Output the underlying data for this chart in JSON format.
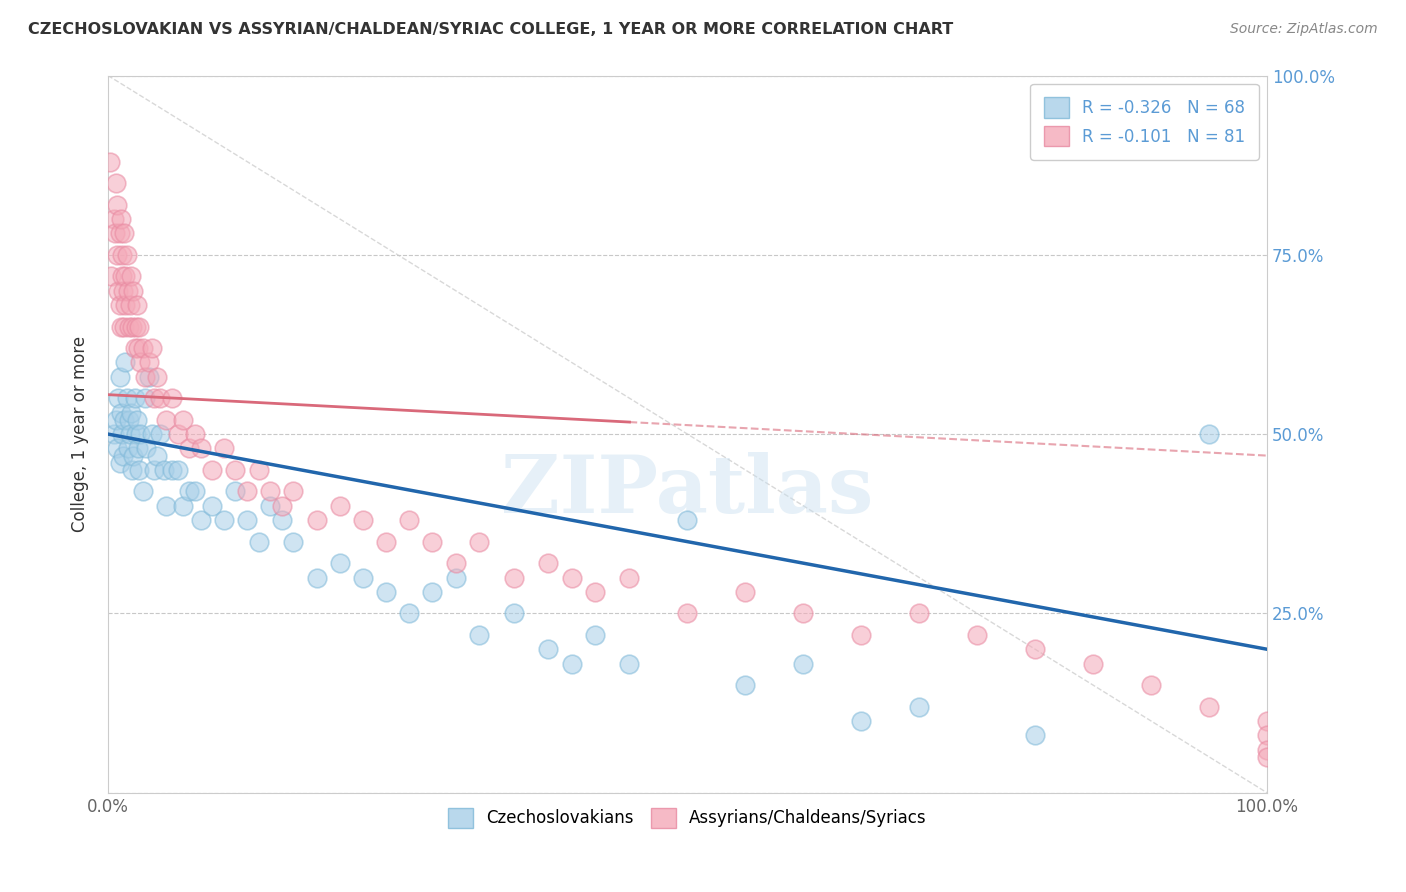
{
  "title": "CZECHOSLOVAKIAN VS ASSYRIAN/CHALDEAN/SYRIAC COLLEGE, 1 YEAR OR MORE CORRELATION CHART",
  "source": "Source: ZipAtlas.com",
  "ylabel": "College, 1 year or more",
  "xlim": [
    0.0,
    1.0
  ],
  "ylim": [
    0.0,
    1.0
  ],
  "xticks": [
    0.0,
    0.25,
    0.5,
    0.75,
    1.0
  ],
  "xtick_labels": [
    "0.0%",
    "",
    "",
    "",
    "100.0%"
  ],
  "yticks": [
    0.0,
    0.25,
    0.5,
    0.75,
    1.0
  ],
  "ytick_labels_right": [
    "",
    "25.0%",
    "50.0%",
    "75.0%",
    "100.0%"
  ],
  "blue_R": -0.326,
  "blue_N": 68,
  "pink_R": -0.101,
  "pink_N": 81,
  "blue_color": "#a8cfe8",
  "pink_color": "#f4a9b8",
  "blue_edge_color": "#7eb8d8",
  "pink_edge_color": "#e888a0",
  "blue_line_color": "#2166ac",
  "pink_line_color": "#d9697a",
  "legend_label_blue": "Czechoslovakians",
  "legend_label_pink": "Assyrians/Chaldeans/Syriacs",
  "watermark": "ZIPatlas",
  "background_color": "#ffffff",
  "grid_color": "#c8c8c8",
  "axis_label_color": "#5b9bd5",
  "blue_trend_y_start": 0.5,
  "blue_trend_y_end": 0.2,
  "pink_trend_y_start": 0.555,
  "pink_trend_y_end": 0.47,
  "blue_scatter_x": [
    0.005,
    0.007,
    0.008,
    0.009,
    0.01,
    0.01,
    0.011,
    0.012,
    0.013,
    0.014,
    0.015,
    0.016,
    0.017,
    0.018,
    0.019,
    0.02,
    0.021,
    0.022,
    0.023,
    0.024,
    0.025,
    0.026,
    0.027,
    0.028,
    0.03,
    0.032,
    0.033,
    0.035,
    0.038,
    0.04,
    0.042,
    0.045,
    0.048,
    0.05,
    0.055,
    0.06,
    0.065,
    0.07,
    0.075,
    0.08,
    0.09,
    0.1,
    0.11,
    0.12,
    0.13,
    0.14,
    0.15,
    0.16,
    0.18,
    0.2,
    0.22,
    0.24,
    0.26,
    0.28,
    0.3,
    0.32,
    0.35,
    0.38,
    0.4,
    0.42,
    0.45,
    0.5,
    0.55,
    0.6,
    0.65,
    0.7,
    0.8,
    0.95
  ],
  "blue_scatter_y": [
    0.5,
    0.52,
    0.48,
    0.55,
    0.58,
    0.46,
    0.53,
    0.5,
    0.47,
    0.52,
    0.6,
    0.55,
    0.48,
    0.52,
    0.5,
    0.53,
    0.45,
    0.47,
    0.55,
    0.5,
    0.52,
    0.48,
    0.45,
    0.5,
    0.42,
    0.55,
    0.48,
    0.58,
    0.5,
    0.45,
    0.47,
    0.5,
    0.45,
    0.4,
    0.45,
    0.45,
    0.4,
    0.42,
    0.42,
    0.38,
    0.4,
    0.38,
    0.42,
    0.38,
    0.35,
    0.4,
    0.38,
    0.35,
    0.3,
    0.32,
    0.3,
    0.28,
    0.25,
    0.28,
    0.3,
    0.22,
    0.25,
    0.2,
    0.18,
    0.22,
    0.18,
    0.38,
    0.15,
    0.18,
    0.1,
    0.12,
    0.08,
    0.5
  ],
  "pink_scatter_x": [
    0.003,
    0.005,
    0.006,
    0.007,
    0.008,
    0.008,
    0.009,
    0.01,
    0.01,
    0.011,
    0.011,
    0.012,
    0.012,
    0.013,
    0.014,
    0.014,
    0.015,
    0.015,
    0.016,
    0.017,
    0.018,
    0.019,
    0.02,
    0.021,
    0.022,
    0.023,
    0.024,
    0.025,
    0.026,
    0.027,
    0.028,
    0.03,
    0.032,
    0.035,
    0.038,
    0.04,
    0.042,
    0.045,
    0.05,
    0.055,
    0.06,
    0.065,
    0.07,
    0.075,
    0.08,
    0.09,
    0.1,
    0.11,
    0.12,
    0.13,
    0.14,
    0.15,
    0.16,
    0.18,
    0.2,
    0.22,
    0.24,
    0.26,
    0.28,
    0.3,
    0.32,
    0.35,
    0.38,
    0.4,
    0.42,
    0.45,
    0.5,
    0.55,
    0.6,
    0.65,
    0.7,
    0.75,
    0.8,
    0.85,
    0.9,
    0.95,
    1.0,
    1.0,
    1.0,
    1.0,
    0.002
  ],
  "pink_scatter_y": [
    0.72,
    0.8,
    0.78,
    0.85,
    0.75,
    0.82,
    0.7,
    0.78,
    0.68,
    0.8,
    0.65,
    0.75,
    0.72,
    0.7,
    0.78,
    0.65,
    0.72,
    0.68,
    0.75,
    0.7,
    0.65,
    0.68,
    0.72,
    0.65,
    0.7,
    0.62,
    0.65,
    0.68,
    0.62,
    0.65,
    0.6,
    0.62,
    0.58,
    0.6,
    0.62,
    0.55,
    0.58,
    0.55,
    0.52,
    0.55,
    0.5,
    0.52,
    0.48,
    0.5,
    0.48,
    0.45,
    0.48,
    0.45,
    0.42,
    0.45,
    0.42,
    0.4,
    0.42,
    0.38,
    0.4,
    0.38,
    0.35,
    0.38,
    0.35,
    0.32,
    0.35,
    0.3,
    0.32,
    0.3,
    0.28,
    0.3,
    0.25,
    0.28,
    0.25,
    0.22,
    0.25,
    0.22,
    0.2,
    0.18,
    0.15,
    0.12,
    0.1,
    0.08,
    0.06,
    0.05,
    0.88
  ]
}
